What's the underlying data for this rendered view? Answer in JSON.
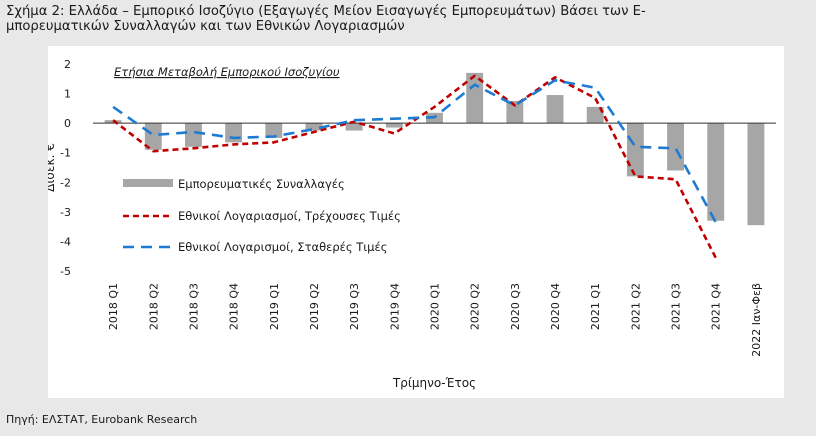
{
  "figure": {
    "title_line1": "Σχήμα 2: Ελλάδα – Εμπορικό Ισοζύγιο (Εξαγωγές Μείον Εισαγωγές Εμπορευμάτων) Βάσει των Ε-",
    "title_line2": "μπορευματικών Συναλλαγών και των Εθνικών Λογαριασμών",
    "source": "Πηγή: ΕΛΣΤΑΤ, Eurobank Research"
  },
  "chart_data": {
    "type": "bar",
    "title": "Ετήσια Μεταβολή Εμπορικού Ισοζυγίου",
    "xlabel": "Τρίμηνο-Έτος",
    "ylabel": "Δισεκ. €",
    "ylim": [
      -5,
      2
    ],
    "yticks": [
      2,
      1,
      0,
      -1,
      -2,
      -3,
      -4,
      -5
    ],
    "grid": false,
    "legend_position": "left",
    "categories": [
      "2018 Q1",
      "2018 Q2",
      "2018 Q3",
      "2018 Q4",
      "2019 Q1",
      "2019 Q2",
      "2019 Q3",
      "2019 Q4",
      "2020 Q1",
      "2020 Q2",
      "2020 Q3",
      "2020 Q4",
      "2021 Q1",
      "2021 Q2",
      "2021 Q3",
      "2021 Q4",
      "2022 Ιαν-Φεβ"
    ],
    "series": [
      {
        "name": "Εμπορευματικές Συναλλαγές",
        "kind": "bar",
        "color": "#a6a6a6",
        "values": [
          0.1,
          -0.9,
          -0.8,
          -0.65,
          -0.5,
          -0.25,
          -0.25,
          -0.15,
          0.35,
          1.7,
          0.75,
          0.95,
          0.55,
          -1.8,
          -1.6,
          -3.3,
          -3.45
        ]
      },
      {
        "name": "Εθνικοί Λογαριασμοί, Τρέχουσες Τιμές",
        "kind": "line",
        "dash": "short",
        "color": "#c00000",
        "values": [
          0.1,
          -0.95,
          -0.85,
          -0.72,
          -0.65,
          -0.3,
          0.05,
          -0.35,
          0.55,
          1.6,
          0.6,
          1.55,
          0.85,
          -1.8,
          -1.9,
          -4.55,
          null
        ]
      },
      {
        "name": "Εθνικοί Λογαρισμοί, Σταθερές Τιμές",
        "kind": "line",
        "dash": "long",
        "color": "#1f7bd1",
        "values": [
          0.55,
          -0.4,
          -0.3,
          -0.5,
          -0.45,
          -0.2,
          0.1,
          0.15,
          0.2,
          1.3,
          0.6,
          1.45,
          1.2,
          -0.8,
          -0.85,
          -3.35,
          null
        ]
      }
    ]
  }
}
